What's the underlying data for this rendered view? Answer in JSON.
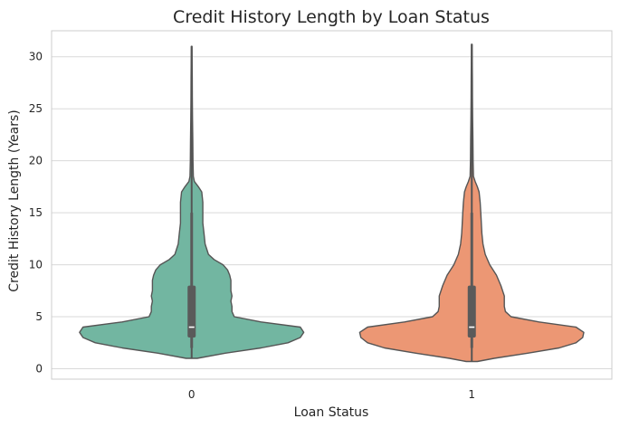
{
  "chart_data": {
    "type": "violin",
    "title": "Credit History Length by Loan Status",
    "xlabel": "Loan Status",
    "ylabel": "Credit History Length (Years)",
    "categories": [
      "0",
      "1"
    ],
    "ylim": [
      -1,
      32.5
    ],
    "yticks": [
      0,
      5,
      10,
      15,
      20,
      25,
      30
    ],
    "yticklabels": [
      "0",
      "5",
      "10",
      "15",
      "20",
      "25",
      "30"
    ],
    "grid": true,
    "violins": [
      {
        "category": "0",
        "color": "#72b6a1",
        "min": 1.0,
        "max": 31.0,
        "q1": 3.0,
        "median": 4.0,
        "q3": 8.0,
        "whisker_low": 2.0,
        "whisker_high": 15.0,
        "profile": [
          [
            1.0,
            0.05
          ],
          [
            1.5,
            0.3
          ],
          [
            2.0,
            0.62
          ],
          [
            2.5,
            0.86
          ],
          [
            3.0,
            0.97
          ],
          [
            3.5,
            1.0
          ],
          [
            4.0,
            0.97
          ],
          [
            4.5,
            0.62
          ],
          [
            5.0,
            0.38
          ],
          [
            5.5,
            0.36
          ],
          [
            6.0,
            0.36
          ],
          [
            6.5,
            0.35
          ],
          [
            7.0,
            0.36
          ],
          [
            7.5,
            0.35
          ],
          [
            8.0,
            0.35
          ],
          [
            8.5,
            0.35
          ],
          [
            9.0,
            0.34
          ],
          [
            9.5,
            0.32
          ],
          [
            10.0,
            0.28
          ],
          [
            10.5,
            0.2
          ],
          [
            11.0,
            0.15
          ],
          [
            12.0,
            0.12
          ],
          [
            13.0,
            0.11
          ],
          [
            14.0,
            0.1
          ],
          [
            15.0,
            0.1
          ],
          [
            16.0,
            0.1
          ],
          [
            17.0,
            0.09
          ],
          [
            17.5,
            0.06
          ],
          [
            18.0,
            0.025
          ],
          [
            18.5,
            0.015
          ],
          [
            20.0,
            0.012
          ],
          [
            22.0,
            0.01
          ],
          [
            24.0,
            0.008
          ],
          [
            26.0,
            0.006
          ],
          [
            28.0,
            0.005
          ],
          [
            30.0,
            0.004
          ],
          [
            31.0,
            0.003
          ]
        ]
      },
      {
        "category": "1",
        "color": "#ec9774",
        "min": 0.7,
        "max": 31.2,
        "q1": 3.0,
        "median": 4.0,
        "q3": 8.0,
        "whisker_low": 2.0,
        "whisker_high": 15.0,
        "profile": [
          [
            0.7,
            0.05
          ],
          [
            1.0,
            0.2
          ],
          [
            1.5,
            0.5
          ],
          [
            2.0,
            0.78
          ],
          [
            2.5,
            0.93
          ],
          [
            3.0,
            0.99
          ],
          [
            3.5,
            1.0
          ],
          [
            4.0,
            0.93
          ],
          [
            4.5,
            0.6
          ],
          [
            5.0,
            0.35
          ],
          [
            5.5,
            0.3
          ],
          [
            6.0,
            0.29
          ],
          [
            7.0,
            0.29
          ],
          [
            8.0,
            0.26
          ],
          [
            9.0,
            0.22
          ],
          [
            10.0,
            0.16
          ],
          [
            11.0,
            0.12
          ],
          [
            12.0,
            0.1
          ],
          [
            13.0,
            0.09
          ],
          [
            14.0,
            0.085
          ],
          [
            15.0,
            0.08
          ],
          [
            16.0,
            0.075
          ],
          [
            17.0,
            0.065
          ],
          [
            17.5,
            0.05
          ],
          [
            18.0,
            0.03
          ],
          [
            18.5,
            0.015
          ],
          [
            20.0,
            0.012
          ],
          [
            22.0,
            0.01
          ],
          [
            24.0,
            0.008
          ],
          [
            26.0,
            0.006
          ],
          [
            28.0,
            0.005
          ],
          [
            30.0,
            0.004
          ],
          [
            31.2,
            0.003
          ]
        ]
      }
    ]
  }
}
